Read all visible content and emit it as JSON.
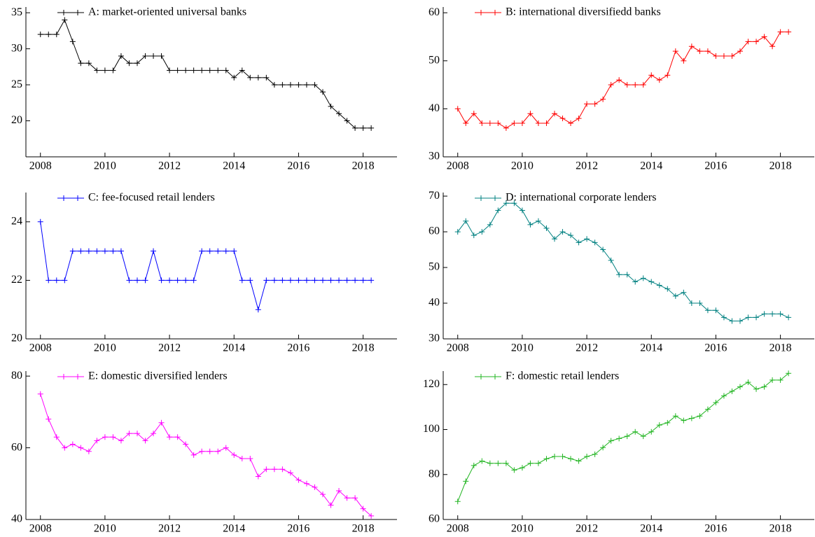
{
  "chart_data": [
    {
      "type": "line",
      "x": [
        2008,
        2008.25,
        2008.5,
        2008.75,
        2009,
        2009.25,
        2009.5,
        2009.75,
        2010,
        2010.25,
        2010.5,
        2010.75,
        2011,
        2011.25,
        2011.5,
        2011.75,
        2012,
        2012.25,
        2012.5,
        2012.75,
        2013,
        2013.25,
        2013.5,
        2013.75,
        2014,
        2014.25,
        2014.5,
        2014.75,
        2015,
        2015.25,
        2015.5,
        2015.75,
        2016,
        2016.25,
        2016.5,
        2016.75,
        2017,
        2017.25,
        2017.5,
        2017.75,
        2018,
        2018.25
      ],
      "series": [
        {
          "name": "A: market-oriented universal banks",
          "color": "#000000",
          "values": [
            32,
            32,
            32,
            34,
            31,
            28,
            28,
            27,
            27,
            27,
            29,
            28,
            28,
            29,
            29,
            29,
            27,
            27,
            27,
            27,
            27,
            27,
            27,
            27,
            26,
            27,
            26,
            26,
            26,
            25,
            25,
            25,
            25,
            25,
            25,
            24,
            22,
            21,
            20,
            19,
            19,
            19
          ]
        }
      ],
      "xlim": [
        2007.55,
        2019.05
      ],
      "xticks": [
        2008,
        2010,
        2012,
        2014,
        2016,
        2018
      ],
      "ylim": [
        15,
        35.8
      ],
      "yticks": [
        20,
        25,
        30,
        35
      ]
    },
    {
      "type": "line",
      "x": [
        2008,
        2008.25,
        2008.5,
        2008.75,
        2009,
        2009.25,
        2009.5,
        2009.75,
        2010,
        2010.25,
        2010.5,
        2010.75,
        2011,
        2011.25,
        2011.5,
        2011.75,
        2012,
        2012.25,
        2012.5,
        2012.75,
        2013,
        2013.25,
        2013.5,
        2013.75,
        2014,
        2014.25,
        2014.5,
        2014.75,
        2015,
        2015.25,
        2015.5,
        2015.75,
        2016,
        2016.25,
        2016.5,
        2016.75,
        2017,
        2017.25,
        2017.5,
        2017.75,
        2018,
        2018.25
      ],
      "series": [
        {
          "name": "B: international diversifiedd banks",
          "color": "#ff0000",
          "values": [
            40,
            37,
            39,
            37,
            37,
            37,
            36,
            37,
            37,
            39,
            37,
            37,
            39,
            38,
            37,
            38,
            41,
            41,
            42,
            45,
            46,
            45,
            45,
            45,
            47,
            46,
            47,
            52,
            50,
            53,
            52,
            52,
            51,
            51,
            51,
            52,
            54,
            54,
            55,
            53,
            56,
            56
          ]
        }
      ],
      "xlim": [
        2007.55,
        2019.05
      ],
      "xticks": [
        2008,
        2010,
        2012,
        2014,
        2016,
        2018
      ],
      "ylim": [
        30,
        61.2
      ],
      "yticks": [
        30,
        40,
        50,
        60
      ]
    },
    {
      "type": "line",
      "x": [
        2008,
        2008.25,
        2008.5,
        2008.75,
        2009,
        2009.25,
        2009.5,
        2009.75,
        2010,
        2010.25,
        2010.5,
        2010.75,
        2011,
        2011.25,
        2011.5,
        2011.75,
        2012,
        2012.25,
        2012.5,
        2012.75,
        2013,
        2013.25,
        2013.5,
        2013.75,
        2014,
        2014.25,
        2014.5,
        2014.75,
        2015,
        2015.25,
        2015.5,
        2015.75,
        2016,
        2016.25,
        2016.5,
        2016.75,
        2017,
        2017.25,
        2017.5,
        2017.75,
        2018,
        2018.25
      ],
      "series": [
        {
          "name": "C: fee-focused retail lenders",
          "color": "#0000ff",
          "values": [
            24,
            22,
            22,
            22,
            23,
            23,
            23,
            23,
            23,
            23,
            23,
            22,
            22,
            22,
            23,
            22,
            22,
            22,
            22,
            22,
            23,
            23,
            23,
            23,
            23,
            22,
            22,
            21,
            22,
            22,
            22,
            22,
            22,
            22,
            22,
            22,
            22,
            22,
            22,
            22,
            22,
            22
          ]
        }
      ],
      "xlim": [
        2007.55,
        2019.05
      ],
      "xticks": [
        2008,
        2010,
        2012,
        2014,
        2016,
        2018
      ],
      "ylim": [
        20,
        25
      ],
      "yticks": [
        20,
        22,
        24
      ]
    },
    {
      "type": "line",
      "x": [
        2008,
        2008.25,
        2008.5,
        2008.75,
        2009,
        2009.25,
        2009.5,
        2009.75,
        2010,
        2010.25,
        2010.5,
        2010.75,
        2011,
        2011.25,
        2011.5,
        2011.75,
        2012,
        2012.25,
        2012.5,
        2012.75,
        2013,
        2013.25,
        2013.5,
        2013.75,
        2014,
        2014.25,
        2014.5,
        2014.75,
        2015,
        2015.25,
        2015.5,
        2015.75,
        2016,
        2016.25,
        2016.5,
        2016.75,
        2017,
        2017.25,
        2017.5,
        2017.75,
        2018,
        2018.25
      ],
      "series": [
        {
          "name": "D: international corporate lenders",
          "color": "#008080",
          "values": [
            60,
            63,
            59,
            60,
            62,
            66,
            68,
            68,
            66,
            62,
            63,
            61,
            58,
            60,
            59,
            57,
            58,
            57,
            55,
            52,
            48,
            48,
            46,
            47,
            46,
            45,
            44,
            42,
            43,
            40,
            40,
            38,
            38,
            36,
            35,
            35,
            36,
            36,
            37,
            37,
            37,
            36
          ]
        }
      ],
      "xlim": [
        2007.55,
        2019.05
      ],
      "xticks": [
        2008,
        2010,
        2012,
        2014,
        2016,
        2018
      ],
      "ylim": [
        30,
        71
      ],
      "yticks": [
        30,
        40,
        50,
        60,
        70
      ]
    },
    {
      "type": "line",
      "x": [
        2008,
        2008.25,
        2008.5,
        2008.75,
        2009,
        2009.25,
        2009.5,
        2009.75,
        2010,
        2010.25,
        2010.5,
        2010.75,
        2011,
        2011.25,
        2011.5,
        2011.75,
        2012,
        2012.25,
        2012.5,
        2012.75,
        2013,
        2013.25,
        2013.5,
        2013.75,
        2014,
        2014.25,
        2014.5,
        2014.75,
        2015,
        2015.25,
        2015.5,
        2015.75,
        2016,
        2016.25,
        2016.5,
        2016.75,
        2017,
        2017.25,
        2017.5,
        2017.75,
        2018,
        2018.25
      ],
      "series": [
        {
          "name": "E: domestic diversified lenders",
          "color": "#ff00ff",
          "values": [
            75,
            68,
            63,
            60,
            61,
            60,
            59,
            62,
            63,
            63,
            62,
            64,
            64,
            62,
            64,
            67,
            63,
            63,
            61,
            58,
            59,
            59,
            59,
            60,
            58,
            57,
            57,
            52,
            54,
            54,
            54,
            53,
            51,
            50,
            49,
            47,
            44,
            48,
            46,
            46,
            43,
            41
          ]
        }
      ],
      "xlim": [
        2007.55,
        2019.05
      ],
      "xticks": [
        2008,
        2010,
        2012,
        2014,
        2016,
        2018
      ],
      "ylim": [
        40,
        81.4
      ],
      "yticks": [
        40,
        60,
        80
      ]
    },
    {
      "type": "line",
      "x": [
        2008,
        2008.25,
        2008.5,
        2008.75,
        2009,
        2009.25,
        2009.5,
        2009.75,
        2010,
        2010.25,
        2010.5,
        2010.75,
        2011,
        2011.25,
        2011.5,
        2011.75,
        2012,
        2012.25,
        2012.5,
        2012.75,
        2013,
        2013.25,
        2013.5,
        2013.75,
        2014,
        2014.25,
        2014.5,
        2014.75,
        2015,
        2015.25,
        2015.5,
        2015.75,
        2016,
        2016.25,
        2016.5,
        2016.75,
        2017,
        2017.25,
        2017.5,
        2017.75,
        2018,
        2018.25
      ],
      "series": [
        {
          "name": "F: domestic retail lenders",
          "color": "#22b522",
          "values": [
            68,
            77,
            84,
            86,
            85,
            85,
            85,
            82,
            83,
            85,
            85,
            87,
            88,
            88,
            87,
            86,
            88,
            89,
            92,
            95,
            96,
            97,
            99,
            97,
            99,
            102,
            103,
            106,
            104,
            105,
            106,
            109,
            112,
            115,
            117,
            119,
            121,
            118,
            119,
            122,
            122,
            125
          ]
        }
      ],
      "xlim": [
        2007.55,
        2019.05
      ],
      "xticks": [
        2008,
        2010,
        2012,
        2014,
        2016,
        2018
      ],
      "ylim": [
        60,
        126
      ],
      "yticks": [
        60,
        80,
        100,
        120
      ]
    }
  ]
}
